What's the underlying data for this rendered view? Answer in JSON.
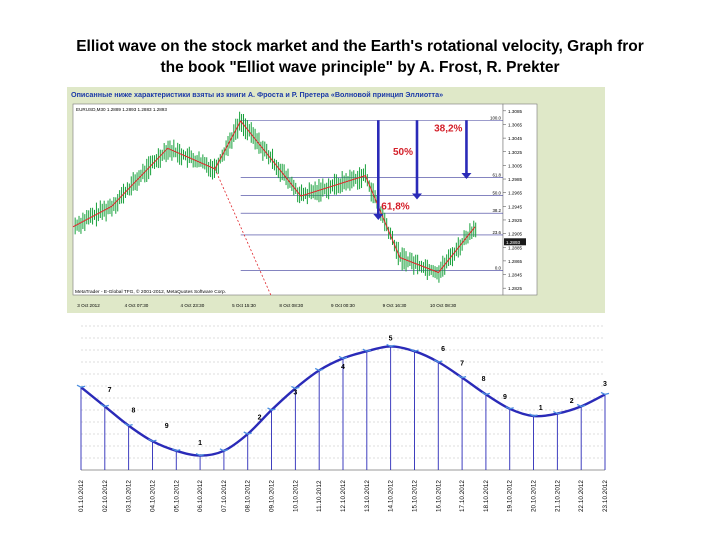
{
  "slide": {
    "title_line1": "Elliot wave on the stock market and the Earth's rotational velocity, Graph fror",
    "title_line2": "the book \"Elliot wave principle\" by A. Frost, R. Prekter"
  },
  "chart_data": [
    {
      "type": "line",
      "name": "stock",
      "caption": "Описанные ниже характеристики взяты из книги А. Фроста и Р. Претера «Волновой принцип Эллиотта»",
      "header": "EURUSD,M30 1.2889 1.2893 1.2883 1.2893",
      "footer": "MetaTrader - E-Global TFG, © 2001-2012, MetaQuotes Software Corp.",
      "price_ticks": [
        "1.3085",
        "1.3065",
        "1.3045",
        "1.3025",
        "1.3005",
        "1.2985",
        "1.2965",
        "1.2945",
        "1.2925",
        "1.2905",
        "1.2885",
        "1.2865",
        "1.2845",
        "1.2825"
      ],
      "current_price": "1.2893",
      "time_ticks": [
        "3 Oct 2012",
        "4 Oct 07:30",
        "4 Oct 23:30",
        "5 Oct 15:30",
        "8 Oct 08:30",
        "9 Oct 00:30",
        "9 Oct 16:30",
        "10 Oct 08:30"
      ],
      "fib_levels": [
        {
          "label": "100.0",
          "price": 1.3071
        },
        {
          "label": "61.8",
          "price": 1.2987
        },
        {
          "label": "50.0",
          "price": 1.2961
        },
        {
          "label": "38.2",
          "price": 1.2935
        },
        {
          "label": "23.6",
          "price": 1.2903
        },
        {
          "label": "0.0",
          "price": 1.2851
        }
      ],
      "arrows": [
        {
          "label": "61,8%",
          "to_price": 1.2925
        },
        {
          "label": "50%",
          "to_price": 1.2955
        },
        {
          "label": "38,2%",
          "to_price": 1.2985
        }
      ],
      "wave_path": [
        [
          0,
          1.2915
        ],
        [
          0.09,
          1.2945
        ],
        [
          0.22,
          1.303
        ],
        [
          0.33,
          1.3
        ],
        [
          0.39,
          1.307
        ],
        [
          0.53,
          1.296
        ],
        [
          0.68,
          1.299
        ],
        [
          0.76,
          1.287
        ],
        [
          0.85,
          1.2848
        ],
        [
          0.935,
          1.2915
        ]
      ],
      "colors": {
        "price": "#16a03a",
        "wave": "#e0242a",
        "arrow": "#2a2ab8",
        "fib": "#3a3a9a",
        "label": "#d4202a"
      }
    },
    {
      "type": "line",
      "name": "rotation",
      "categories": [
        "01.10.2012",
        "02.10.2012",
        "03.10.2012",
        "04.10.2012",
        "05.10.2012",
        "06.10.2012",
        "07.10.2012",
        "08.10.2012",
        "09.10.2012",
        "10.10.2012",
        "11.10.2012",
        "12.10.2012",
        "13.10.2012",
        "14.10.2012",
        "15.10.2012",
        "16.10.2012",
        "17.10.2012",
        "18.10.2012",
        "19.10.2012",
        "20.10.2012",
        "21.10.2012",
        "22.10.2012",
        "23.10.2012"
      ],
      "values": [
        6.9,
        5.3,
        3.7,
        2.4,
        1.6,
        1.2,
        1.6,
        3.0,
        5.0,
        6.8,
        8.3,
        9.3,
        9.9,
        10.3,
        9.9,
        9.0,
        7.7,
        6.3,
        5.1,
        4.5,
        4.7,
        5.3,
        6.3
      ],
      "wave_labels": [
        {
          "text": "7",
          "x": 1.2,
          "y": 6.5
        },
        {
          "text": "8",
          "x": 2.2,
          "y": 4.8
        },
        {
          "text": "9",
          "x": 3.6,
          "y": 3.5
        },
        {
          "text": "1",
          "x": 5.0,
          "y": 2.1
        },
        {
          "text": "2",
          "x": 7.5,
          "y": 4.2
        },
        {
          "text": "3",
          "x": 9.0,
          "y": 6.3
        },
        {
          "text": "4",
          "x": 11.0,
          "y": 8.4
        },
        {
          "text": "5",
          "x": 13.0,
          "y": 10.8
        },
        {
          "text": "6",
          "x": 15.2,
          "y": 9.9
        },
        {
          "text": "7",
          "x": 16.0,
          "y": 8.7
        },
        {
          "text": "8",
          "x": 16.9,
          "y": 7.4
        },
        {
          "text": "9",
          "x": 17.8,
          "y": 5.9
        },
        {
          "text": "1",
          "x": 19.3,
          "y": 5.0
        },
        {
          "text": "2",
          "x": 20.6,
          "y": 5.6
        },
        {
          "text": "3",
          "x": 22.0,
          "y": 7.0
        }
      ],
      "ylim": [
        0,
        12
      ],
      "colors": {
        "line": "#2a2ab8",
        "labels": "#000000",
        "markers": "#4a8ee0",
        "grid": "#b9b9b9"
      }
    }
  ]
}
